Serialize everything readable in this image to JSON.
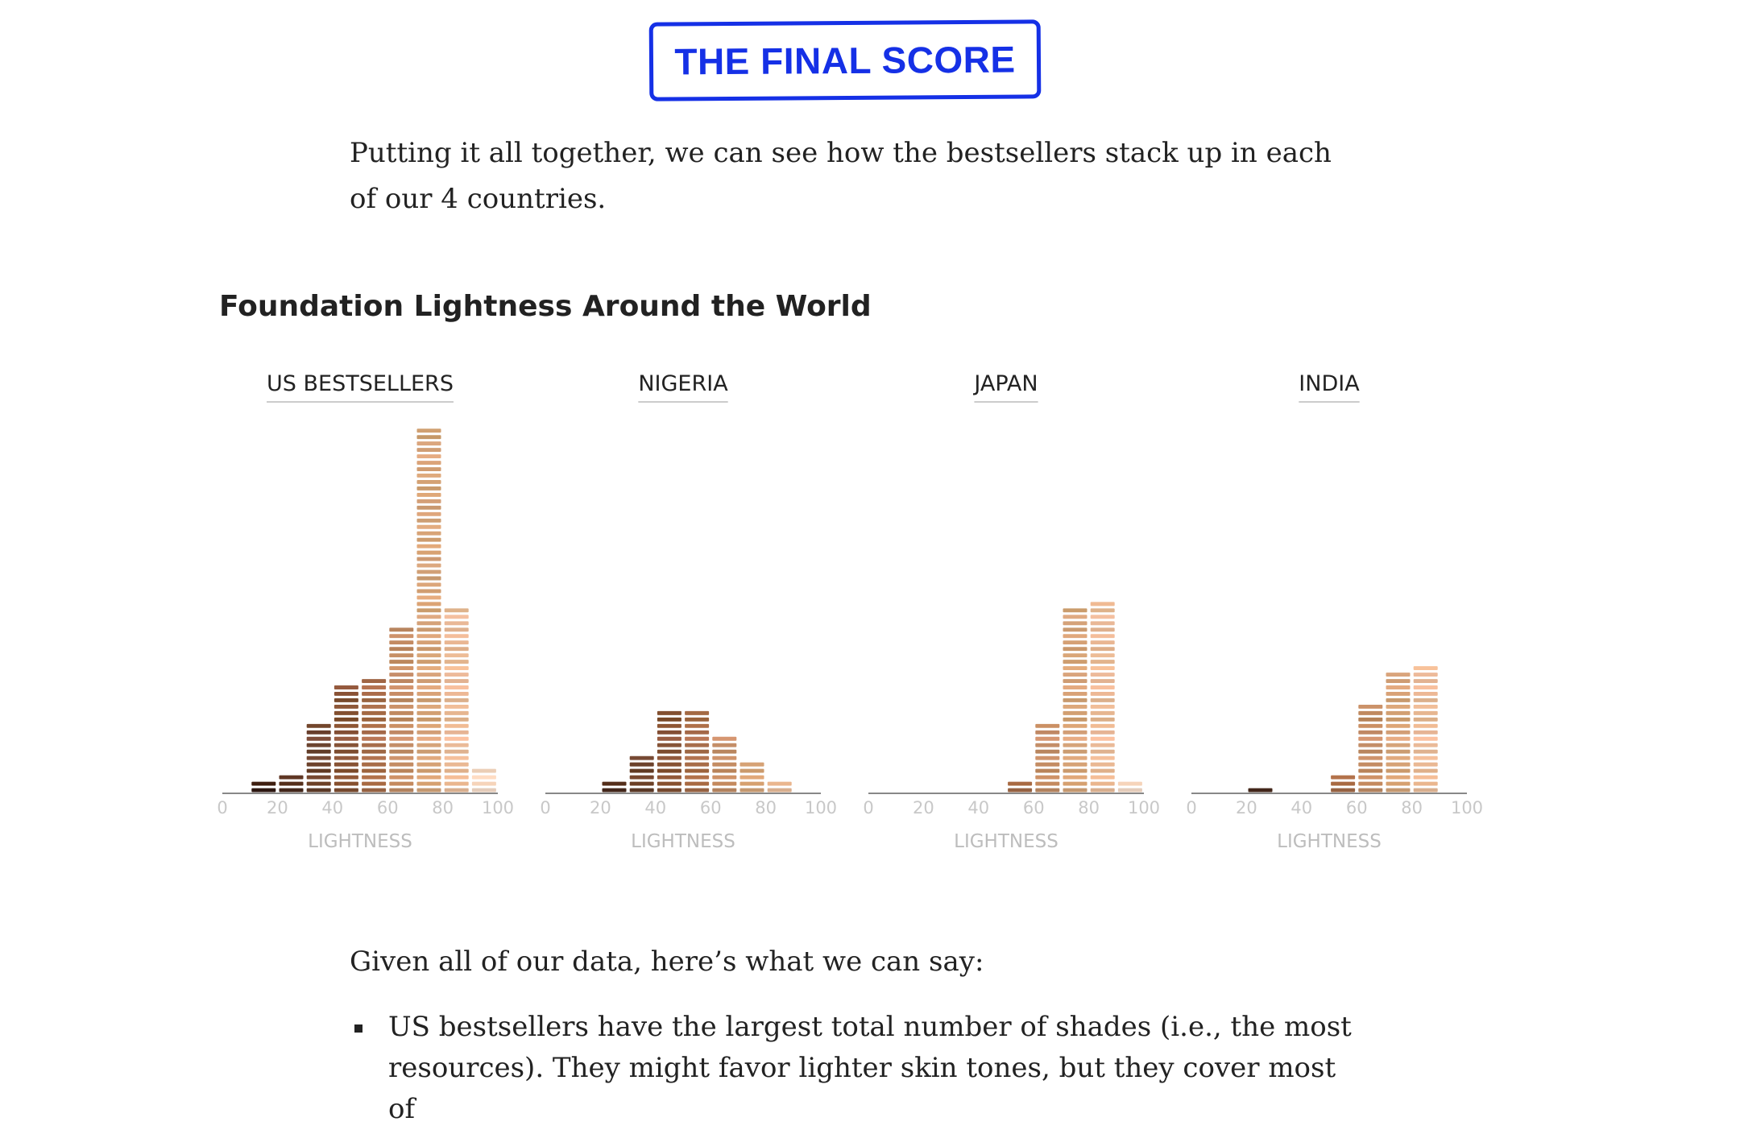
{
  "section": {
    "title": "THE FINAL SCORE"
  },
  "intro": "Putting it all together, we can see how the bestsellers stack up in each of our 4 countries.",
  "given": "Given all of our data, here’s what we can say:",
  "bullets": [
    "US bestsellers have the largest total number of shades (i.e., the most resources). They might favor lighter skin tones, but they cover most of"
  ],
  "colors": {
    "title_accent": "#1530e6",
    "underline": "#cccccc",
    "axis": "#888888"
  },
  "chart_data": {
    "type": "bar",
    "title": "Foundation Lightness Around the World",
    "xlabel": "LIGHTNESS",
    "ylabel": "",
    "xlim": [
      0,
      100
    ],
    "x_ticks": [
      0,
      20,
      40,
      60,
      80,
      100
    ],
    "bin_centers": [
      15,
      25,
      35,
      45,
      55,
      65,
      75,
      85,
      95
    ],
    "legend": "none",
    "grid": false,
    "series": [
      {
        "name": "US BESTSELLERS",
        "values": [
          2,
          3,
          11,
          17,
          18,
          26,
          57,
          29,
          4
        ]
      },
      {
        "name": "NIGERIA",
        "values": [
          0,
          2,
          6,
          13,
          13,
          9,
          5,
          2,
          0
        ]
      },
      {
        "name": "JAPAN",
        "values": [
          0,
          0,
          0,
          0,
          2,
          11,
          29,
          30,
          2
        ]
      },
      {
        "name": "INDIA",
        "values": [
          0,
          1,
          0,
          0,
          3,
          14,
          19,
          20,
          0
        ]
      }
    ]
  }
}
